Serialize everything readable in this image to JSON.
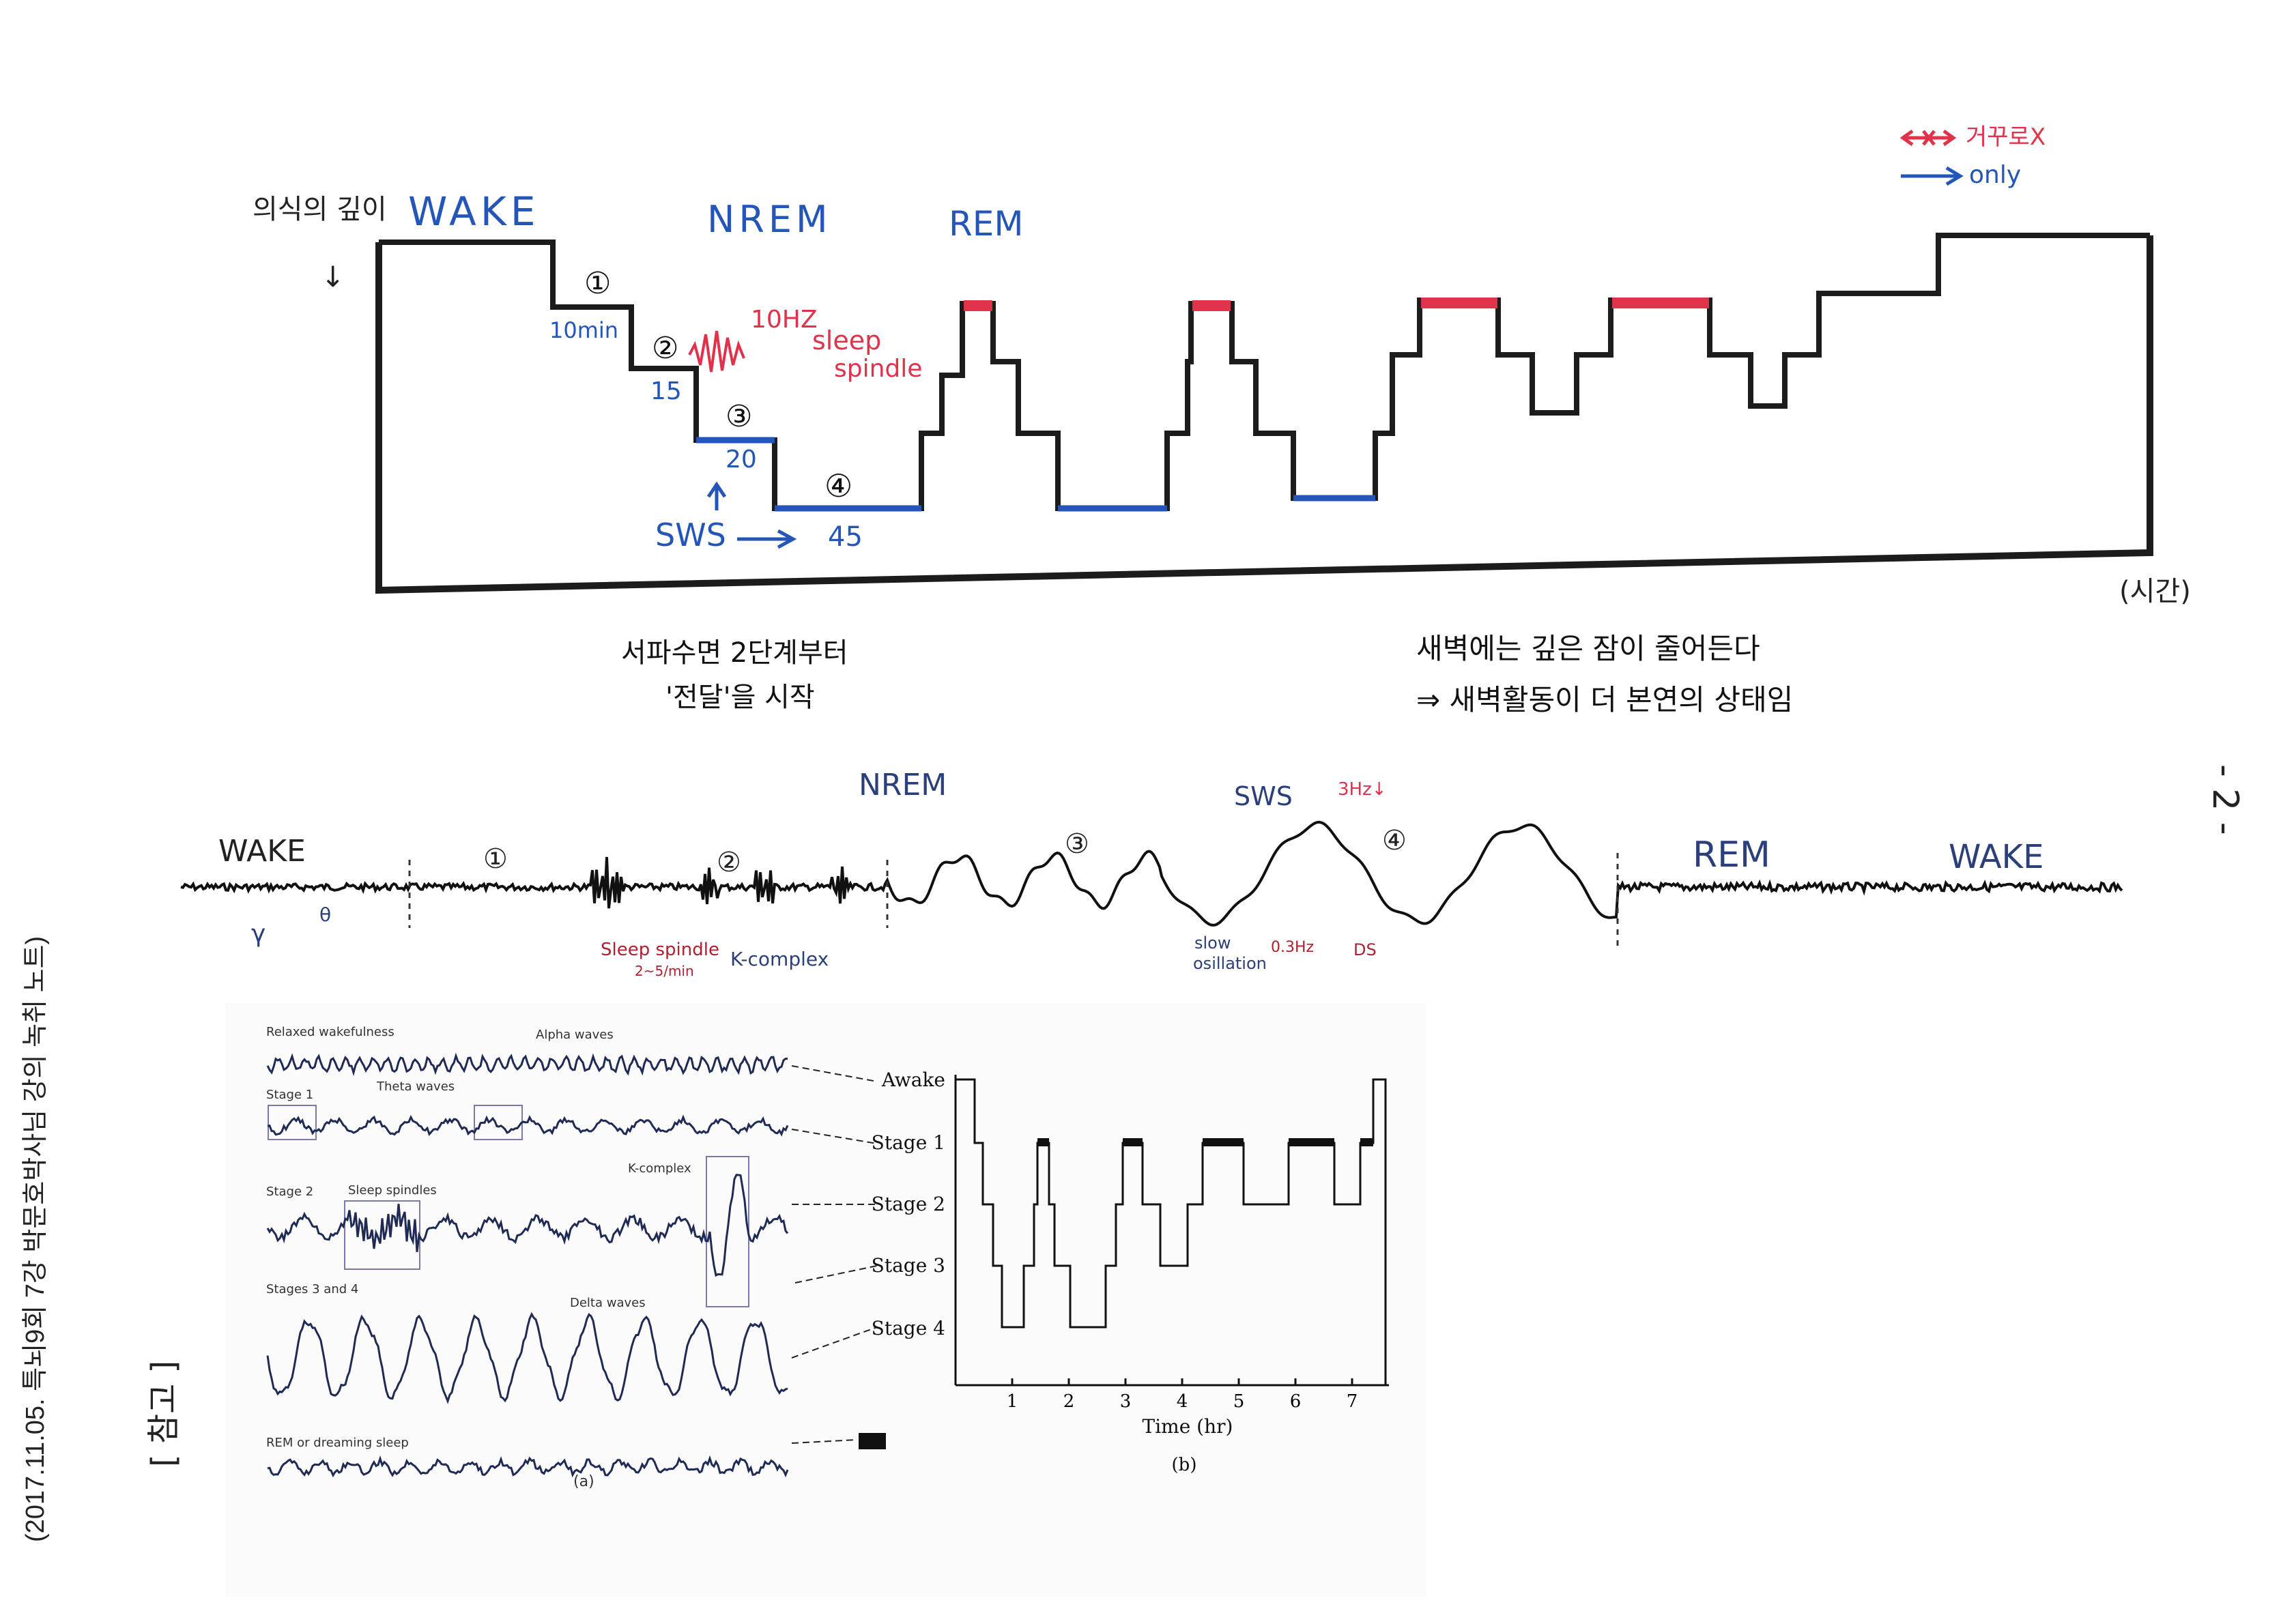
{
  "side_note": "(2017.11.05. 특뇌9회 7강 박문호박사님 강의 녹취 노트)",
  "reference_label": "[ 참고 ]",
  "page_number": "- 2 -",
  "hypnogram_sketch": {
    "y_axis_label": "의식의 깊이",
    "x_axis_label": "(시간)",
    "states": [
      "WAKE",
      "NREM",
      "REM"
    ],
    "stage_marks": [
      "①",
      "②",
      "③",
      "④"
    ],
    "durations": [
      "10min",
      "15",
      "20",
      "45"
    ],
    "spindle_note": [
      "10HZ",
      "sleep",
      "spindle"
    ],
    "sws_label": "SWS",
    "legend": [
      {
        "symbol": "←×→",
        "text": "거꾸로X",
        "color": "#e0324a"
      },
      {
        "symbol": "→",
        "text": "only",
        "color": "#2456b8"
      }
    ],
    "note_left": [
      "서파수면 2단계부터",
      "'전달'을 시작"
    ],
    "note_right": [
      "새벽에는 깊은 잠이 줄어든다",
      "⇒ 새벽활동이 더 본연의 상태임"
    ]
  },
  "eeg_sketch": {
    "labels": {
      "wake_left": "WAKE",
      "nrem": "NREM",
      "sws": "SWS",
      "hz_note": "3Hz↓",
      "rem": "REM",
      "wake_right": "WAKE",
      "gamma": "γ",
      "theta": "θ",
      "sleep_spindle": "Sleep spindle",
      "rate": "2~5/min",
      "k_complex": "K-complex",
      "slow_oscillation": [
        "slow",
        "osillation"
      ],
      "freq": "0.3Hz",
      "ds": "DS"
    },
    "stage_marks": [
      "①",
      "②",
      "③",
      "④"
    ]
  },
  "textbook_figure": {
    "panel_a": {
      "rows": [
        {
          "label": "Relaxed wakefulness",
          "wave_label": "Alpha waves"
        },
        {
          "label": "Stage 1",
          "wave_label": "Theta waves"
        },
        {
          "label": "Stage 2",
          "wave_label": "Sleep spindles",
          "extra_label": "K-complex"
        },
        {
          "label": "Stages 3 and 4",
          "wave_label": "Delta waves"
        },
        {
          "label": "REM or dreaming sleep",
          "wave_label": ""
        }
      ],
      "caption": "(a)"
    },
    "panel_b": {
      "stage_labels": [
        "Awake",
        "Stage 1",
        "Stage 2",
        "Stage 3",
        "Stage 4"
      ],
      "x_ticks": [
        "1",
        "2",
        "3",
        "4",
        "5",
        "6",
        "7"
      ],
      "xlabel": "Time (hr)",
      "caption": "(b)"
    }
  }
}
